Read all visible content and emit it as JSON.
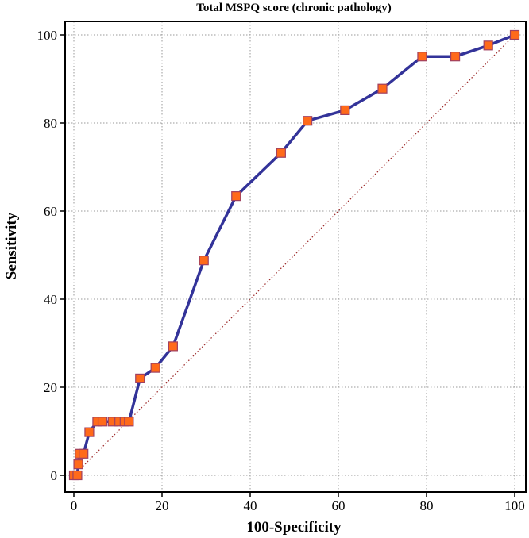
{
  "chart_data": {
    "type": "line",
    "title": "Total MSPQ score (chronic pathology)",
    "xlabel": "100-Specificity",
    "ylabel": "Sensitivity",
    "xlim": [
      0,
      100
    ],
    "ylim": [
      0,
      100
    ],
    "xticks": [
      "0",
      "20",
      "40",
      "60",
      "80",
      "100"
    ],
    "yticks": [
      "0",
      "20",
      "40",
      "60",
      "80",
      "100"
    ],
    "grid": true,
    "series": [
      {
        "color": "#333399",
        "marker_fill": "#ff6a1a",
        "marker_edge": "#a04060",
        "x": [
          0,
          0.8,
          1.0,
          1.3,
          2.2,
          3.5,
          5.3,
          6.5,
          8.8,
          10.3,
          11.5,
          12.5,
          15.0,
          18.5,
          22.5,
          29.5,
          36.8,
          47.0,
          53.0,
          61.5,
          70.0,
          79.0,
          86.5,
          94.0,
          100
        ],
        "y": [
          0,
          0,
          2.5,
          4.9,
          4.9,
          9.8,
          12.2,
          12.2,
          12.2,
          12.2,
          12.2,
          12.2,
          22.0,
          24.4,
          29.3,
          48.8,
          63.4,
          73.2,
          80.5,
          82.9,
          87.8,
          95.1,
          95.1,
          97.6,
          100
        ]
      }
    ],
    "reference_line": {
      "x": [
        0,
        100
      ],
      "y": [
        0,
        100
      ],
      "color": "#a03030"
    }
  }
}
